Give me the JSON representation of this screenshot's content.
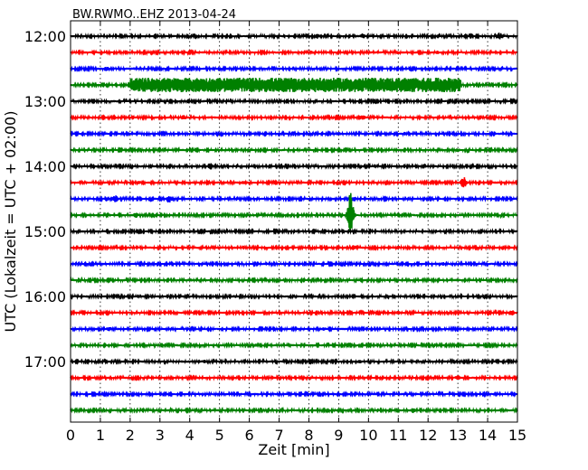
{
  "chart_data": {
    "type": "line",
    "title": "BW.RWMO..EHZ 2013-04-24",
    "xlabel": "Zeit  [min]",
    "ylabel": "UTC (Lokalzeit = UTC + 02:00)",
    "xlim": [
      0,
      15
    ],
    "x_ticks": [
      "0",
      "1",
      "2",
      "3",
      "4",
      "5",
      "6",
      "7",
      "8",
      "9",
      "10",
      "11",
      "12",
      "13",
      "14",
      "15"
    ],
    "y_ticks": [
      "12:00",
      "13:00",
      "14:00",
      "15:00",
      "16:00",
      "17:00"
    ],
    "grid": "vertical dotted lines",
    "trace_colors": [
      "#000000",
      "#ff0000",
      "#0000ff",
      "#008000"
    ],
    "traces": [
      {
        "start": "12:00",
        "events": [
          {
            "t": 8.3,
            "amp": 3
          },
          {
            "t": 9.8,
            "amp": 3
          },
          {
            "t": 14.4,
            "amp": 4
          }
        ]
      },
      {
        "start": "12:15",
        "events": [
          {
            "t": 8.1,
            "amp": 2
          },
          {
            "t": 11.0,
            "amp": 2
          },
          {
            "t": 12.3,
            "amp": 2
          }
        ]
      },
      {
        "start": "12:30",
        "events": [
          {
            "t": 1.2,
            "amp": 3
          },
          {
            "t": 2.1,
            "amp": 2
          }
        ]
      },
      {
        "start": "12:45",
        "events": [
          {
            "t": 2.0,
            "t_end": 13.1,
            "amp": 8
          }
        ]
      },
      {
        "start": "13:00",
        "events": []
      },
      {
        "start": "13:15",
        "events": [
          {
            "t": 3.8,
            "amp": 3
          },
          {
            "t": 9.8,
            "amp": 3
          }
        ]
      },
      {
        "start": "13:30",
        "events": [
          {
            "t": 9.0,
            "amp": 2
          },
          {
            "t": 11.2,
            "amp": 2
          }
        ]
      },
      {
        "start": "13:45",
        "events": [
          {
            "t": 13.0,
            "amp": 2
          }
        ]
      },
      {
        "start": "14:00",
        "events": [
          {
            "t": 4.7,
            "amp": 4
          }
        ]
      },
      {
        "start": "14:15",
        "events": [
          {
            "t": 2.3,
            "amp": 2
          },
          {
            "t": 5.8,
            "amp": 2
          },
          {
            "t": 13.2,
            "amp": 7
          }
        ]
      },
      {
        "start": "14:30",
        "events": [
          {
            "t": 1.5,
            "amp": 4
          },
          {
            "t": 3.3,
            "amp": 5
          },
          {
            "t": 9.5,
            "amp": 3
          }
        ]
      },
      {
        "start": "14:45",
        "events": [
          {
            "t": 2.2,
            "amp": 3
          },
          {
            "t": 9.4,
            "amp": 26
          }
        ]
      },
      {
        "start": "15:00",
        "events": [
          {
            "t": 4.0,
            "amp": 2
          }
        ]
      },
      {
        "start": "15:15",
        "events": [
          {
            "t": 9.5,
            "amp": 3
          },
          {
            "t": 11.0,
            "amp": 2
          }
        ]
      },
      {
        "start": "15:30",
        "events": [
          {
            "t": 12.5,
            "amp": 2
          }
        ]
      },
      {
        "start": "15:45",
        "events": [
          {
            "t": 4.0,
            "amp": 2
          },
          {
            "t": 13.0,
            "amp": 2
          }
        ]
      },
      {
        "start": "16:00",
        "events": [
          {
            "t": 5.5,
            "amp": 2
          },
          {
            "t": 13.0,
            "amp": 2
          }
        ]
      },
      {
        "start": "16:15",
        "events": [
          {
            "t": 11.0,
            "amp": 2
          },
          {
            "t": 14.8,
            "amp": 4
          }
        ]
      },
      {
        "start": "16:30",
        "events": [
          {
            "t": 1.3,
            "amp": 3
          },
          {
            "t": 8.5,
            "amp": 2
          }
        ]
      },
      {
        "start": "16:45",
        "events": [
          {
            "t": 6.2,
            "amp": 2
          }
        ]
      },
      {
        "start": "17:00",
        "events": [
          {
            "t": 4.5,
            "amp": 2
          },
          {
            "t": 9.7,
            "amp": 2
          }
        ]
      },
      {
        "start": "17:15",
        "events": [
          {
            "t": 13.0,
            "amp": 3
          }
        ]
      },
      {
        "start": "17:30",
        "events": [
          {
            "t": 12.5,
            "amp": 1
          }
        ]
      },
      {
        "start": "17:45",
        "events": [
          {
            "t": 11.5,
            "amp": 3
          }
        ]
      }
    ]
  }
}
